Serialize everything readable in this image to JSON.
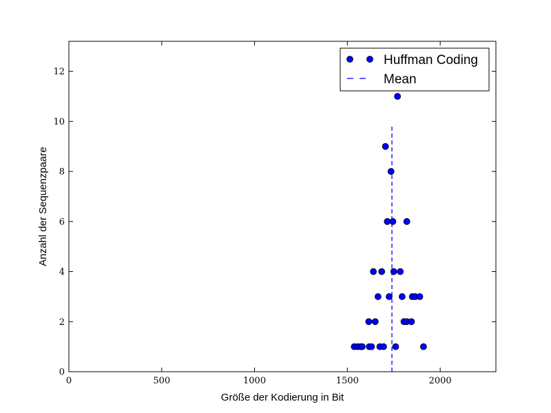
{
  "chart_data": {
    "type": "scatter",
    "title": "",
    "xlabel": "Größe der Kodierung in Bit",
    "ylabel": "Anzahl der Sequenzpaare",
    "xlim": [
      0,
      2300
    ],
    "ylim": [
      0,
      13.2
    ],
    "x_ticks": [
      0,
      500,
      1000,
      1500,
      2000
    ],
    "x_tick_labels": [
      "0",
      "500",
      "1000",
      "1500",
      "2000"
    ],
    "y_ticks": [
      0,
      2,
      4,
      6,
      8,
      10,
      12
    ],
    "y_tick_labels": [
      "0",
      "2",
      "4",
      "6",
      "8",
      "10",
      "12"
    ],
    "grid": false,
    "legend_position": "top-right",
    "colors": {
      "series": "#0000ff",
      "marker_edge": "#000000"
    },
    "series": [
      {
        "name": "Huffman Coding",
        "style": "markers",
        "points": [
          {
            "x": 1537,
            "y": 1
          },
          {
            "x": 1555,
            "y": 1
          },
          {
            "x": 1570,
            "y": 1
          },
          {
            "x": 1580,
            "y": 1
          },
          {
            "x": 1618,
            "y": 1
          },
          {
            "x": 1630,
            "y": 1
          },
          {
            "x": 1675,
            "y": 1
          },
          {
            "x": 1695,
            "y": 1
          },
          {
            "x": 1760,
            "y": 1
          },
          {
            "x": 1910,
            "y": 1
          },
          {
            "x": 1615,
            "y": 2
          },
          {
            "x": 1650,
            "y": 2
          },
          {
            "x": 1805,
            "y": 2
          },
          {
            "x": 1820,
            "y": 2
          },
          {
            "x": 1845,
            "y": 2
          },
          {
            "x": 1665,
            "y": 3
          },
          {
            "x": 1725,
            "y": 3
          },
          {
            "x": 1795,
            "y": 3
          },
          {
            "x": 1850,
            "y": 3
          },
          {
            "x": 1865,
            "y": 3
          },
          {
            "x": 1890,
            "y": 3
          },
          {
            "x": 1640,
            "y": 4
          },
          {
            "x": 1685,
            "y": 4
          },
          {
            "x": 1750,
            "y": 4
          },
          {
            "x": 1785,
            "y": 4
          },
          {
            "x": 1715,
            "y": 6
          },
          {
            "x": 1745,
            "y": 6
          },
          {
            "x": 1820,
            "y": 6
          },
          {
            "x": 1735,
            "y": 8
          },
          {
            "x": 1705,
            "y": 9
          },
          {
            "x": 1770,
            "y": 11
          }
        ]
      },
      {
        "name": "Mean",
        "style": "dashed-vertical-line",
        "x": 1740,
        "y_range": [
          0,
          9.8
        ]
      }
    ]
  }
}
